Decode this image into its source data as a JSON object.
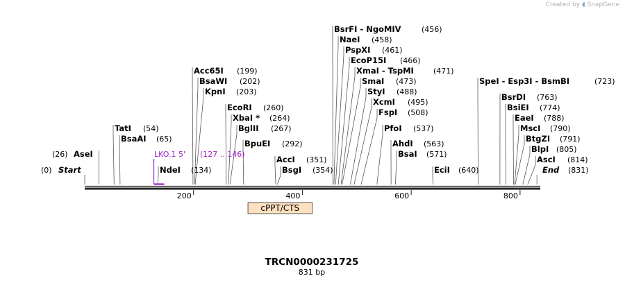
{
  "credit": {
    "text": "Created by",
    "brand": "SnapGene"
  },
  "sequence": {
    "name": "TRCN0000231725",
    "length_label": "831 bp",
    "length": 831
  },
  "axis": {
    "ticks": [
      200,
      400,
      600,
      800
    ]
  },
  "endpoints": [
    {
      "label": "Start",
      "pos_label": "(0)",
      "pos": 0
    },
    {
      "label": "End",
      "pos_label": "(831)",
      "pos": 831
    }
  ],
  "sites": [
    {
      "name": "AseI",
      "pos_label": "(26)",
      "pos": 26
    },
    {
      "name": "TatI",
      "pos_label": "(54)",
      "pos": 54
    },
    {
      "name": "BsaAI",
      "pos_label": "(65)",
      "pos": 65
    },
    {
      "name": "NdeI",
      "pos_label": "(134)",
      "pos": 134
    },
    {
      "name": "Acc65I",
      "pos_label": "(199)",
      "pos": 199
    },
    {
      "name": "BsaWI",
      "pos_label": "(202)",
      "pos": 202
    },
    {
      "name": "KpnI",
      "pos_label": "(203)",
      "pos": 203
    },
    {
      "name": "EcoRI",
      "pos_label": "(260)",
      "pos": 260
    },
    {
      "name": "XbaI *",
      "pos_label": "(264)",
      "pos": 264
    },
    {
      "name": "BglII",
      "pos_label": "(267)",
      "pos": 267
    },
    {
      "name": "BpuEI",
      "pos_label": "(292)",
      "pos": 292
    },
    {
      "name": "AccI",
      "pos_label": "(351)",
      "pos": 351
    },
    {
      "name": "BsgI",
      "pos_label": "(354)",
      "pos": 354
    },
    {
      "name": "BsrFI - NgoMIV",
      "pos_label": "(456)",
      "pos": 456
    },
    {
      "name": "NaeI",
      "pos_label": "(458)",
      "pos": 458
    },
    {
      "name": "PspXI",
      "pos_label": "(461)",
      "pos": 461
    },
    {
      "name": "EcoP15I",
      "pos_label": "(466)",
      "pos": 466
    },
    {
      "name": "XmaI - TspMI",
      "pos_label": "(471)",
      "pos": 471
    },
    {
      "name": "SmaI",
      "pos_label": "(473)",
      "pos": 473
    },
    {
      "name": "StyI",
      "pos_label": "(488)",
      "pos": 488
    },
    {
      "name": "XcmI",
      "pos_label": "(495)",
      "pos": 495
    },
    {
      "name": "FspI",
      "pos_label": "(508)",
      "pos": 508
    },
    {
      "name": "PfoI",
      "pos_label": "(537)",
      "pos": 537
    },
    {
      "name": "AhdI",
      "pos_label": "(563)",
      "pos": 563
    },
    {
      "name": "BsaI",
      "pos_label": "(571)",
      "pos": 571
    },
    {
      "name": "EciI",
      "pos_label": "(640)",
      "pos": 640
    },
    {
      "name": "SpeI - Esp3I - BsmBI",
      "pos_label": "(723)",
      "pos": 723
    },
    {
      "name": "BsrDI",
      "pos_label": "(763)",
      "pos": 763
    },
    {
      "name": "BsiEI",
      "pos_label": "(774)",
      "pos": 774
    },
    {
      "name": "EaeI",
      "pos_label": "(788)",
      "pos": 788
    },
    {
      "name": "MscI",
      "pos_label": "(790)",
      "pos": 790
    },
    {
      "name": "BtgZI",
      "pos_label": "(791)",
      "pos": 791
    },
    {
      "name": "BlpI",
      "pos_label": "(805)",
      "pos": 805
    },
    {
      "name": "AscI",
      "pos_label": "(814)",
      "pos": 814
    }
  ],
  "primer": {
    "name": "LKO.1 5'",
    "range_label": "(127 .. 146)",
    "start": 127,
    "end": 146,
    "color": "#a020c8"
  },
  "features": [
    {
      "name": "cPPT/CTS",
      "start": 300,
      "end": 418,
      "fill": "#fde0c0"
    }
  ]
}
